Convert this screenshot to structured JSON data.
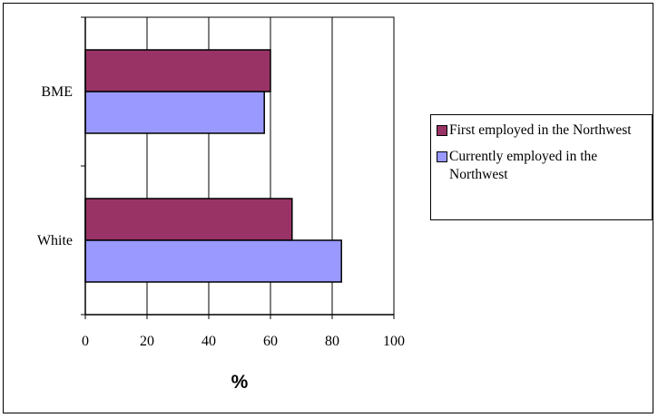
{
  "chart_data": {
    "type": "bar",
    "orientation": "horizontal",
    "categories": [
      "BME",
      "White"
    ],
    "series": [
      {
        "name": "First employed in the Northwest",
        "values": [
          60,
          67
        ],
        "color": "#993366"
      },
      {
        "name": "Currently employed in the Northwest",
        "values": [
          58,
          83
        ],
        "color": "#9999FF"
      }
    ],
    "xlabel": "%",
    "ylabel": "",
    "xlim": [
      0,
      100
    ],
    "xticks": [
      "0",
      "20",
      "40",
      "60",
      "80",
      "100"
    ],
    "grid": "vertical",
    "legend_position": "right"
  }
}
